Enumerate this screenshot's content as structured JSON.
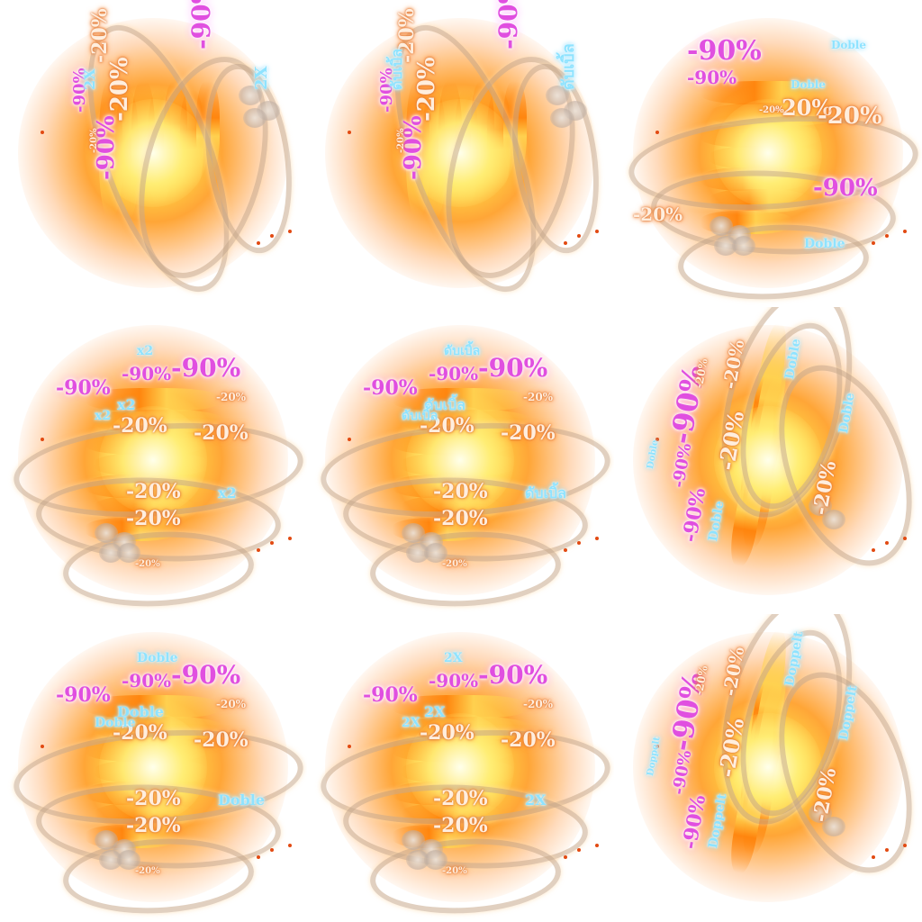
{
  "sheet": {
    "frames": [
      {
        "id": "f1",
        "orientation": "vertical",
        "discount_large": "-90%",
        "discount_small": "-20%",
        "double": "2X"
      },
      {
        "id": "f2",
        "orientation": "vertical",
        "discount_large": "-90%",
        "discount_small": "-20%",
        "double": "ดับเบิ้ล"
      },
      {
        "id": "f3",
        "orientation": "vertical-alt",
        "discount_large": "-90%",
        "discount_small": "-20%",
        "double": "Doble"
      },
      {
        "id": "f4",
        "orientation": "horizontal",
        "discount_large": "-90%",
        "discount_small": "-20%",
        "double": "x2"
      },
      {
        "id": "f5",
        "orientation": "horizontal",
        "discount_large": "-90%",
        "discount_small": "-20%",
        "double": "ดับเบิ้ล"
      },
      {
        "id": "f6",
        "orientation": "rotated",
        "discount_large": "-90%",
        "discount_small": "-20%",
        "double": "Doble"
      },
      {
        "id": "f7",
        "orientation": "horizontal",
        "discount_large": "-90%",
        "discount_small": "-20%",
        "double": "Doble"
      },
      {
        "id": "f8",
        "orientation": "horizontal",
        "discount_large": "-90%",
        "discount_small": "-20%",
        "double": "2X"
      },
      {
        "id": "f9",
        "orientation": "rotated",
        "discount_large": "-90%",
        "discount_small": "-20%",
        "double": "Doppelt"
      }
    ]
  },
  "colors": {
    "discount_large": "#e04fe0",
    "discount_small": "#ffeede",
    "double": "#8fe3ff",
    "fire": "#ff9a1a"
  }
}
